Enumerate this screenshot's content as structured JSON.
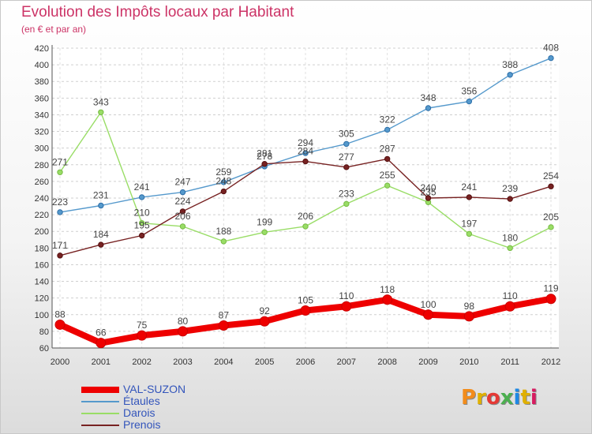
{
  "header": {
    "title": "Evolution des Impôts locaux par Habitant",
    "subtitle": "(en € et par an)"
  },
  "logo": {
    "text": "Proxiti",
    "colors": [
      "#f28c1b",
      "#e0b000",
      "#e53935",
      "#4caf50",
      "#1e88e5",
      "#e0b000",
      "#d81b60"
    ]
  },
  "chart_data": {
    "type": "line",
    "title": "Evolution des Impôts locaux par Habitant",
    "subtitle": "(en € et par an)",
    "xlabel": "",
    "ylabel": "",
    "x": [
      "2000",
      "2001",
      "2002",
      "2003",
      "2004",
      "2005",
      "2006",
      "2007",
      "2008",
      "2009",
      "2010",
      "2011",
      "2012"
    ],
    "ylim": [
      60,
      420
    ],
    "yticks": [
      60,
      80,
      100,
      120,
      140,
      160,
      180,
      200,
      220,
      240,
      260,
      280,
      300,
      320,
      340,
      360,
      380,
      400,
      420
    ],
    "grid": "horizontal dashed",
    "legend_position": "bottom-left",
    "series": [
      {
        "name": "VAL-SUZON",
        "color": "#ee0000",
        "values": [
          88,
          66,
          75,
          80,
          87,
          92,
          105,
          110,
          118,
          100,
          98,
          110,
          119
        ]
      },
      {
        "name": "Étaules",
        "color": "#5599cc",
        "values": [
          223,
          231,
          241,
          247,
          259,
          278,
          294,
          305,
          322,
          348,
          356,
          388,
          408
        ]
      },
      {
        "name": "Darois",
        "color": "#99dd66",
        "values": [
          271,
          343,
          210,
          206,
          188,
          199,
          206,
          233,
          255,
          235,
          197,
          180,
          205
        ]
      },
      {
        "name": "Prenois",
        "color": "#772222",
        "values": [
          171,
          184,
          195,
          224,
          248,
          281,
          284,
          277,
          287,
          240,
          241,
          239,
          254
        ]
      }
    ]
  }
}
